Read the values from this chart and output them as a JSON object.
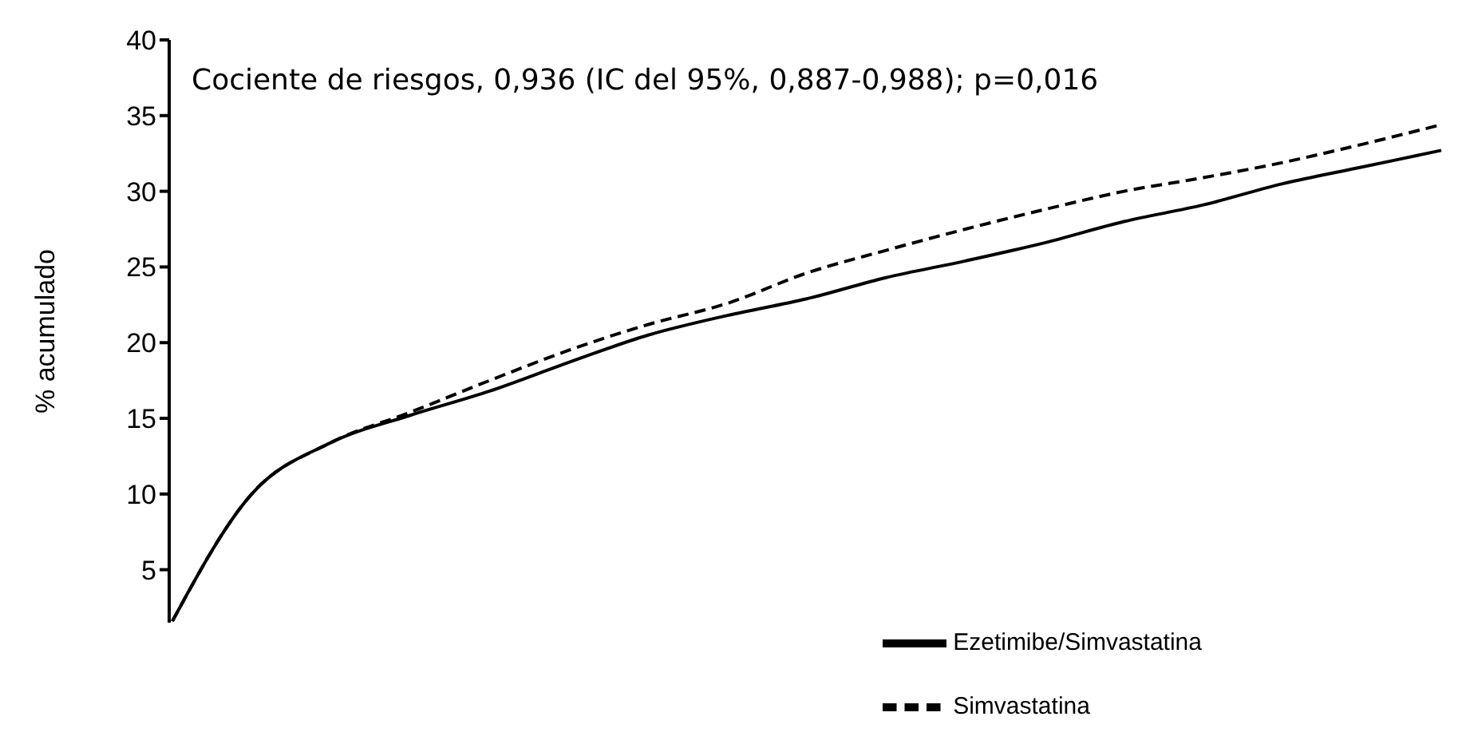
{
  "chart_data": {
    "type": "line",
    "ylabel": "% acumulado",
    "annotations": [
      "Cociente de riesgos, 0,936 (IC del 95%, 0,887-0,988); p=0,016"
    ],
    "categories": [
      null,
      null,
      null,
      null,
      null,
      null,
      null,
      null,
      null,
      null,
      null,
      null,
      null,
      null,
      null,
      null,
      null
    ],
    "series": [
      {
        "name": "Ezetimibe/Simvastatina",
        "color": "#000000",
        "line_style": "solid",
        "values": [
          1.6,
          10.0,
          13.4,
          15.2,
          16.8,
          18.7,
          20.5,
          21.8,
          22.9,
          24.3,
          25.4,
          26.6,
          28.0,
          29.1,
          30.5,
          31.6,
          32.7
        ]
      },
      {
        "name": "Simvastatina",
        "color": "#000000",
        "line_style": "dashed",
        "values": [
          1.6,
          10.0,
          13.4,
          15.4,
          17.5,
          19.5,
          21.2,
          22.6,
          24.6,
          26.1,
          27.5,
          28.8,
          30.0,
          30.9,
          31.9,
          33.1,
          34.4
        ]
      }
    ],
    "ylim": [
      1.5,
      40
    ],
    "yticks": [
      5,
      10,
      15,
      20,
      25,
      30,
      35,
      40
    ],
    "tick_labels": "y",
    "grid": false,
    "legend": "bottom right",
    "marker": "none"
  }
}
